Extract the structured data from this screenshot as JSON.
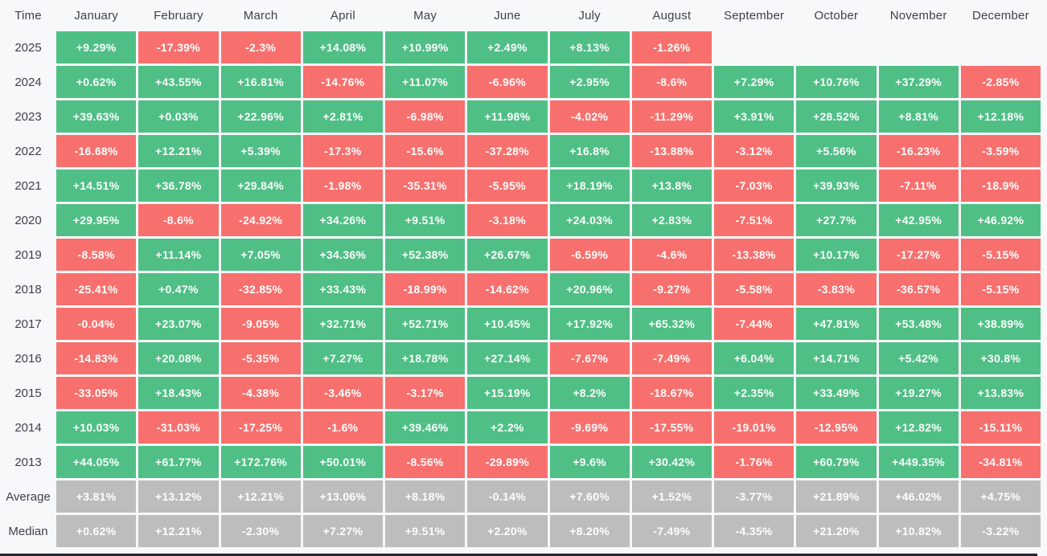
{
  "colors": {
    "page_bg": "#f7f8fa",
    "positive_bg": "#4fbf85",
    "negative_bg": "#f7706e",
    "summary_bg": "#bdbdbd",
    "cell_text": "#fdfefe",
    "label_text": "#3c424a",
    "scrollbar": "#23262e"
  },
  "table": {
    "header": [
      "Time",
      "January",
      "February",
      "March",
      "April",
      "May",
      "June",
      "July",
      "August",
      "September",
      "October",
      "November",
      "December"
    ],
    "rows": [
      {
        "label": "2025",
        "kind": "year",
        "cells": [
          "+9.29%",
          "-17.39%",
          "-2.3%",
          "+14.08%",
          "+10.99%",
          "+2.49%",
          "+8.13%",
          "-1.26%",
          "",
          "",
          "",
          ""
        ]
      },
      {
        "label": "2024",
        "kind": "year",
        "cells": [
          "+0.62%",
          "+43.55%",
          "+16.81%",
          "-14.76%",
          "+11.07%",
          "-6.96%",
          "+2.95%",
          "-8.6%",
          "+7.29%",
          "+10.76%",
          "+37.29%",
          "-2.85%"
        ]
      },
      {
        "label": "2023",
        "kind": "year",
        "cells": [
          "+39.63%",
          "+0.03%",
          "+22.96%",
          "+2.81%",
          "-6.98%",
          "+11.98%",
          "-4.02%",
          "-11.29%",
          "+3.91%",
          "+28.52%",
          "+8.81%",
          "+12.18%"
        ]
      },
      {
        "label": "2022",
        "kind": "year",
        "cells": [
          "-16.68%",
          "+12.21%",
          "+5.39%",
          "-17.3%",
          "-15.6%",
          "-37.28%",
          "+16.8%",
          "-13.88%",
          "-3.12%",
          "+5.56%",
          "-16.23%",
          "-3.59%"
        ]
      },
      {
        "label": "2021",
        "kind": "year",
        "cells": [
          "+14.51%",
          "+36.78%",
          "+29.84%",
          "-1.98%",
          "-35.31%",
          "-5.95%",
          "+18.19%",
          "+13.8%",
          "-7.03%",
          "+39.93%",
          "-7.11%",
          "-18.9%"
        ]
      },
      {
        "label": "2020",
        "kind": "year",
        "cells": [
          "+29.95%",
          "-8.6%",
          "-24.92%",
          "+34.26%",
          "+9.51%",
          "-3.18%",
          "+24.03%",
          "+2.83%",
          "-7.51%",
          "+27.7%",
          "+42.95%",
          "+46.92%"
        ]
      },
      {
        "label": "2019",
        "kind": "year",
        "cells": [
          "-8.58%",
          "+11.14%",
          "+7.05%",
          "+34.36%",
          "+52.38%",
          "+26.67%",
          "-6.59%",
          "-4.6%",
          "-13.38%",
          "+10.17%",
          "-17.27%",
          "-5.15%"
        ]
      },
      {
        "label": "2018",
        "kind": "year",
        "cells": [
          "-25.41%",
          "+0.47%",
          "-32.85%",
          "+33.43%",
          "-18.99%",
          "-14.62%",
          "+20.96%",
          "-9.27%",
          "-5.58%",
          "-3.83%",
          "-36.57%",
          "-5.15%"
        ]
      },
      {
        "label": "2017",
        "kind": "year",
        "cells": [
          "-0.04%",
          "+23.07%",
          "-9.05%",
          "+32.71%",
          "+52.71%",
          "+10.45%",
          "+17.92%",
          "+65.32%",
          "-7.44%",
          "+47.81%",
          "+53.48%",
          "+38.89%"
        ]
      },
      {
        "label": "2016",
        "kind": "year",
        "cells": [
          "-14.83%",
          "+20.08%",
          "-5.35%",
          "+7.27%",
          "+18.78%",
          "+27.14%",
          "-7.67%",
          "-7.49%",
          "+6.04%",
          "+14.71%",
          "+5.42%",
          "+30.8%"
        ]
      },
      {
        "label": "2015",
        "kind": "year",
        "cells": [
          "-33.05%",
          "+18.43%",
          "-4.38%",
          "-3.46%",
          "-3.17%",
          "+15.19%",
          "+8.2%",
          "-18.67%",
          "+2.35%",
          "+33.49%",
          "+19.27%",
          "+13.83%"
        ]
      },
      {
        "label": "2014",
        "kind": "year",
        "cells": [
          "+10.03%",
          "-31.03%",
          "-17.25%",
          "-1.6%",
          "+39.46%",
          "+2.2%",
          "-9.69%",
          "-17.55%",
          "-19.01%",
          "-12.95%",
          "+12.82%",
          "-15.11%"
        ]
      },
      {
        "label": "2013",
        "kind": "year",
        "cells": [
          "+44.05%",
          "+61.77%",
          "+172.76%",
          "+50.01%",
          "-8.56%",
          "-29.89%",
          "+9.6%",
          "+30.42%",
          "-1.76%",
          "+60.79%",
          "+449.35%",
          "-34.81%"
        ]
      },
      {
        "label": "Average",
        "kind": "summary",
        "cells": [
          "+3.81%",
          "+13.12%",
          "+12.21%",
          "+13.06%",
          "+8.18%",
          "-0.14%",
          "+7.60%",
          "+1.52%",
          "-3.77%",
          "+21.89%",
          "+46.02%",
          "+4.75%"
        ]
      },
      {
        "label": "Median",
        "kind": "summary",
        "cells": [
          "+0.62%",
          "+12.21%",
          "-2.30%",
          "+7.27%",
          "+9.51%",
          "+2.20%",
          "+8.20%",
          "-7.49%",
          "-4.35%",
          "+21.20%",
          "+10.82%",
          "-3.22%"
        ]
      }
    ]
  },
  "chart_data": {
    "type": "heatmap",
    "unit": "%",
    "x": [
      "January",
      "February",
      "March",
      "April",
      "May",
      "June",
      "July",
      "August",
      "September",
      "October",
      "November",
      "December"
    ],
    "y": [
      "2025",
      "2024",
      "2023",
      "2022",
      "2021",
      "2020",
      "2019",
      "2018",
      "2017",
      "2016",
      "2015",
      "2014",
      "2013",
      "Average",
      "Median"
    ],
    "values": [
      [
        9.29,
        -17.39,
        -2.3,
        14.08,
        10.99,
        2.49,
        8.13,
        -1.26,
        null,
        null,
        null,
        null
      ],
      [
        0.62,
        43.55,
        16.81,
        -14.76,
        11.07,
        -6.96,
        2.95,
        -8.6,
        7.29,
        10.76,
        37.29,
        -2.85
      ],
      [
        39.63,
        0.03,
        22.96,
        2.81,
        -6.98,
        11.98,
        -4.02,
        -11.29,
        3.91,
        28.52,
        8.81,
        12.18
      ],
      [
        -16.68,
        12.21,
        5.39,
        -17.3,
        -15.6,
        -37.28,
        16.8,
        -13.88,
        -3.12,
        5.56,
        -16.23,
        -3.59
      ],
      [
        14.51,
        36.78,
        29.84,
        -1.98,
        -35.31,
        -5.95,
        18.19,
        13.8,
        -7.03,
        39.93,
        -7.11,
        -18.9
      ],
      [
        29.95,
        -8.6,
        -24.92,
        34.26,
        9.51,
        -3.18,
        24.03,
        2.83,
        -7.51,
        27.7,
        42.95,
        46.92
      ],
      [
        -8.58,
        11.14,
        7.05,
        34.36,
        52.38,
        26.67,
        -6.59,
        -4.6,
        -13.38,
        10.17,
        -17.27,
        -5.15
      ],
      [
        -25.41,
        0.47,
        -32.85,
        33.43,
        -18.99,
        -14.62,
        20.96,
        -9.27,
        -5.58,
        -3.83,
        -36.57,
        -5.15
      ],
      [
        -0.04,
        23.07,
        -9.05,
        32.71,
        52.71,
        10.45,
        17.92,
        65.32,
        -7.44,
        47.81,
        53.48,
        38.89
      ],
      [
        -14.83,
        20.08,
        -5.35,
        7.27,
        18.78,
        27.14,
        -7.67,
        -7.49,
        6.04,
        14.71,
        5.42,
        30.8
      ],
      [
        -33.05,
        18.43,
        -4.38,
        -3.46,
        -3.17,
        15.19,
        8.2,
        -18.67,
        2.35,
        33.49,
        19.27,
        13.83
      ],
      [
        10.03,
        -31.03,
        -17.25,
        -1.6,
        39.46,
        2.2,
        -9.69,
        -17.55,
        -19.01,
        -12.95,
        12.82,
        -15.11
      ],
      [
        44.05,
        61.77,
        172.76,
        50.01,
        -8.56,
        -29.89,
        9.6,
        30.42,
        -1.76,
        60.79,
        449.35,
        -34.81
      ],
      [
        3.81,
        13.12,
        12.21,
        13.06,
        8.18,
        -0.14,
        7.6,
        1.52,
        -3.77,
        21.89,
        46.02,
        4.75
      ],
      [
        0.62,
        12.21,
        -2.3,
        7.27,
        9.51,
        2.2,
        8.2,
        -7.49,
        -4.35,
        21.2,
        10.82,
        -3.22
      ]
    ],
    "legend": {
      "positive_color": "#4fbf85",
      "negative_color": "#f7706e",
      "summary_row_color": "#bdbdbd"
    },
    "layout": {
      "grid": false,
      "first_column_header": "Time",
      "summary_rows": [
        "Average",
        "Median"
      ]
    }
  }
}
